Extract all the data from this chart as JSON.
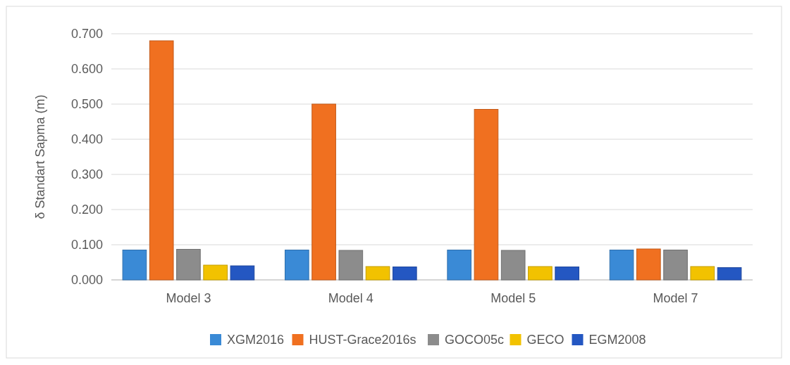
{
  "chart_data": {
    "type": "bar",
    "ylabel": "δ  Standart Sapma (m)",
    "categories": [
      "Model 3",
      "Model 4",
      "Model 5",
      "Model 7"
    ],
    "series": [
      {
        "name": "XGM2016",
        "color": "#3a8ad6",
        "values": [
          0.085,
          0.085,
          0.085,
          0.085
        ]
      },
      {
        "name": "HUST-Grace2016s",
        "color": "#f07020",
        "values": [
          0.68,
          0.5,
          0.485,
          0.088
        ]
      },
      {
        "name": "GOCO05c",
        "color": "#8c8c8c",
        "values": [
          0.087,
          0.084,
          0.084,
          0.085
        ]
      },
      {
        "name": "GECO",
        "color": "#f2c200",
        "values": [
          0.042,
          0.038,
          0.038,
          0.038
        ]
      },
      {
        "name": "EGM2008",
        "color": "#2457c2",
        "values": [
          0.04,
          0.037,
          0.037,
          0.035
        ]
      }
    ],
    "ylim": [
      0,
      0.7
    ],
    "yticks": [
      {
        "value": 0,
        "label": "0.000"
      },
      {
        "value": 0.1,
        "label": "0.100"
      },
      {
        "value": 0.2,
        "label": "0.200"
      },
      {
        "value": 0.3,
        "label": "0.300"
      },
      {
        "value": 0.4,
        "label": "0.400"
      },
      {
        "value": 0.5,
        "label": "0.500"
      },
      {
        "value": 0.6,
        "label": "0.600"
      },
      {
        "value": 0.7,
        "label": "0.700"
      }
    ],
    "grid": "y",
    "legend": "bottom"
  }
}
